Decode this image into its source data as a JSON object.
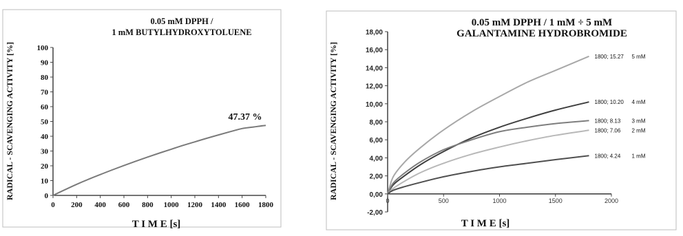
{
  "chart_data": [
    {
      "type": "line",
      "title_lines": [
        "0.05 mM DPPH /",
        "1 mM BUTYLHYDROXYTOLUENE"
      ],
      "xlabel": "T I M E [s]",
      "ylabel": "RADICAL - SCAVENGING ACTIVITY [%]",
      "xlim": [
        0,
        1800
      ],
      "ylim": [
        0,
        100
      ],
      "x_ticks": [
        "0",
        "200",
        "400",
        "600",
        "800",
        "1000",
        "1200",
        "1400",
        "1600",
        "1800"
      ],
      "y_ticks": [
        "0",
        "10",
        "20",
        "30",
        "40",
        "50",
        "60",
        "70",
        "80",
        "90",
        "100"
      ],
      "annotation": "47.37 %",
      "series": [
        {
          "color": "#7a7a7a",
          "x": [
            0,
            100,
            200,
            300,
            400,
            500,
            600,
            700,
            800,
            900,
            1000,
            1100,
            1200,
            1300,
            1400,
            1500,
            1600,
            1700,
            1800
          ],
          "y": [
            0,
            3.8,
            7.5,
            10.9,
            14.1,
            17.2,
            20.2,
            23.1,
            25.9,
            28.6,
            31.2,
            33.8,
            36.2,
            38.6,
            40.9,
            43.1,
            45.2,
            46.3,
            47.37
          ]
        }
      ]
    },
    {
      "type": "line",
      "title_lines": [
        "0.05 mM DPPH / 1 mM ÷ 5 mM",
        "GALANTAMINE HYDROBROMIDE"
      ],
      "xlabel": "T I M E [s]",
      "ylabel": "RADICAL - SCAVENGING ACTIVITY [%]",
      "xlim": [
        0,
        2000
      ],
      "ylim": [
        -2,
        18
      ],
      "x_ticks": [
        "0",
        "500",
        "1000",
        "1500",
        "2000"
      ],
      "y_ticks": [
        "-2,00",
        "0,00",
        "2,00",
        "4,00",
        "6,00",
        "8,00",
        "10,00",
        "12,00",
        "14,00",
        "16,00",
        "18,00"
      ],
      "series": [
        {
          "name": "5 mM",
          "end_label": "1800; 15.27",
          "color": "#a8a8a8",
          "x": [
            0,
            50,
            150,
            300,
            500,
            750,
            1000,
            1250,
            1500,
            1800
          ],
          "y": [
            0,
            1.9,
            3.5,
            5.2,
            7.1,
            9.1,
            10.8,
            12.4,
            13.7,
            15.27
          ]
        },
        {
          "name": "4 mM",
          "end_label": "1800; 10.20",
          "color": "#3f3f3f",
          "x": [
            0,
            50,
            150,
            300,
            500,
            750,
            1000,
            1250,
            1500,
            1800
          ],
          "y": [
            0,
            1.0,
            2.0,
            3.3,
            4.7,
            6.2,
            7.4,
            8.4,
            9.3,
            10.2
          ]
        },
        {
          "name": "3 mM",
          "end_label": "1800; 8.13",
          "color": "#7e7e7e",
          "x": [
            0,
            50,
            150,
            300,
            500,
            750,
            1000,
            1250,
            1500,
            1800
          ],
          "y": [
            0,
            1.2,
            2.3,
            3.6,
            4.9,
            6.0,
            6.9,
            7.4,
            7.8,
            8.13
          ]
        },
        {
          "name": "2 mM",
          "end_label": "1800; 7.06",
          "color": "#b8b8b8",
          "x": [
            0,
            50,
            150,
            300,
            500,
            750,
            1000,
            1250,
            1500,
            1800
          ],
          "y": [
            0,
            0.6,
            1.4,
            2.4,
            3.4,
            4.4,
            5.2,
            5.9,
            6.5,
            7.06
          ]
        },
        {
          "name": "1 mM",
          "end_label": "1800; 4.24",
          "color": "#4f4f4f",
          "x": [
            0,
            50,
            150,
            300,
            500,
            750,
            1000,
            1250,
            1500,
            1800
          ],
          "y": [
            0,
            0.4,
            0.8,
            1.3,
            1.9,
            2.5,
            3.0,
            3.4,
            3.8,
            4.24
          ]
        }
      ]
    }
  ]
}
